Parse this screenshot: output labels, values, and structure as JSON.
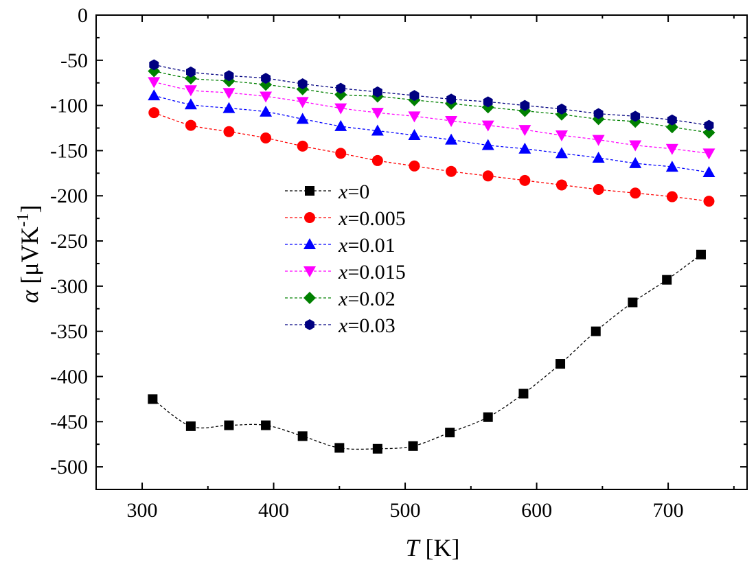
{
  "chart_data": {
    "type": "line",
    "title": "",
    "xlabel": {
      "symbol": "T",
      "unit": " [K]"
    },
    "ylabel": {
      "symbol": "α",
      "unit": " [μVK",
      "sup": "-1",
      "close": "]"
    },
    "xlim": [
      265,
      760
    ],
    "ylim": [
      -525,
      0
    ],
    "xticks": [
      300,
      400,
      500,
      600,
      700
    ],
    "yticks": [
      0,
      -50,
      -100,
      -150,
      -200,
      -250,
      -300,
      -350,
      -400,
      -450,
      -500
    ],
    "grid": false,
    "legend_position": "center-left",
    "series": [
      {
        "name": "x=0",
        "label_var": "x",
        "label_val": "=0",
        "color": "#000000",
        "marker": "square",
        "x": [
          308,
          337,
          366,
          394,
          422,
          450,
          479,
          506,
          534,
          563,
          590,
          618,
          645,
          673,
          699,
          725
        ],
        "y": [
          -425,
          -455,
          -454,
          -454,
          -466,
          -479,
          -480,
          -477,
          -462,
          -445,
          -419,
          -386,
          -350,
          -318,
          -293,
          -265
        ]
      },
      {
        "name": "x=0.005",
        "label_var": "x",
        "label_val": "=0.005",
        "color": "#ff0000",
        "marker": "circle",
        "x": [
          309,
          337,
          366,
          394,
          422,
          451,
          479,
          507,
          535,
          563,
          591,
          619,
          647,
          675,
          703,
          731
        ],
        "y": [
          -108,
          -122,
          -129,
          -136,
          -145,
          -153,
          -161,
          -167,
          -173,
          -178,
          -183,
          -188,
          -193,
          -197,
          -201,
          -206
        ]
      },
      {
        "name": "x=0.01",
        "label_var": "x",
        "label_val": "=0.01",
        "color": "#0000ff",
        "marker": "triangle-up",
        "x": [
          309,
          337,
          366,
          394,
          422,
          451,
          479,
          507,
          535,
          563,
          591,
          619,
          647,
          675,
          703,
          731
        ],
        "y": [
          -89,
          -99,
          -103,
          -107,
          -115,
          -123,
          -128,
          -133,
          -138,
          -144,
          -148,
          -153,
          -158,
          -164,
          -168,
          -174
        ]
      },
      {
        "name": "x=0.015",
        "label_var": "x",
        "label_val": "=0.015",
        "color": "#ff00ff",
        "marker": "triangle-down",
        "x": [
          309,
          337,
          366,
          394,
          422,
          451,
          479,
          507,
          535,
          563,
          591,
          619,
          647,
          675,
          703,
          731
        ],
        "y": [
          -74,
          -83,
          -86,
          -90,
          -96,
          -103,
          -108,
          -112,
          -117,
          -122,
          -127,
          -133,
          -138,
          -144,
          -148,
          -153
        ]
      },
      {
        "name": "x=0.02",
        "label_var": "x",
        "label_val": "=0.02",
        "color": "#008000",
        "marker": "diamond",
        "x": [
          309,
          337,
          366,
          394,
          422,
          451,
          479,
          507,
          535,
          563,
          591,
          619,
          647,
          675,
          703,
          731
        ],
        "y": [
          -62,
          -70,
          -73,
          -77,
          -82,
          -88,
          -90,
          -94,
          -98,
          -102,
          -106,
          -110,
          -115,
          -118,
          -124,
          -130
        ]
      },
      {
        "name": "x=0.03",
        "label_var": "x",
        "label_val": "=0.03",
        "color": "#000080",
        "marker": "hexagon",
        "x": [
          309,
          337,
          366,
          394,
          422,
          451,
          479,
          507,
          535,
          563,
          591,
          619,
          647,
          675,
          703,
          731
        ],
        "y": [
          -55,
          -63,
          -67,
          -70,
          -76,
          -81,
          -85,
          -89,
          -93,
          -96,
          -100,
          -104,
          -109,
          -112,
          -116,
          -122
        ]
      }
    ]
  }
}
